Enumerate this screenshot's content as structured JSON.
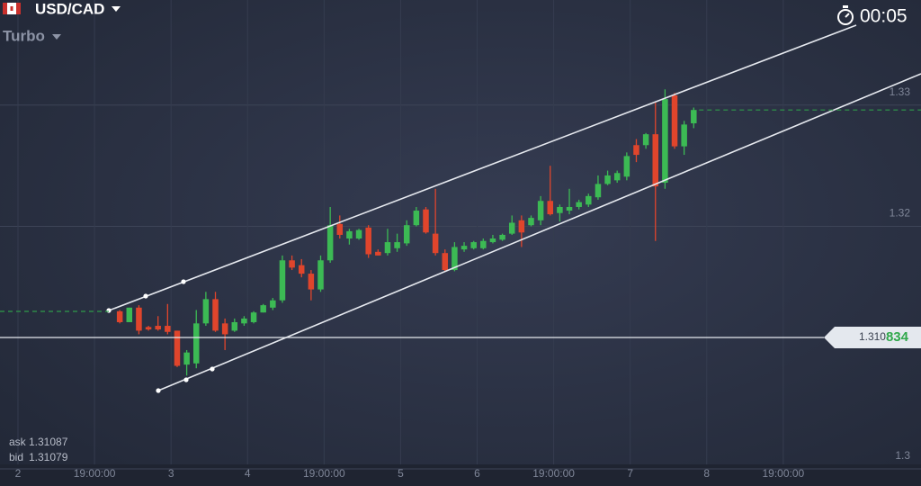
{
  "header": {
    "asset": "USD/CAD",
    "mode": "Turbo",
    "timer": "00:05"
  },
  "quotes": {
    "ask_label": "ask",
    "ask": "1.31087",
    "bid_label": "bid",
    "bid": "1.31079"
  },
  "chart_data": {
    "type": "candlestick",
    "up_color": "#3cba54",
    "down_color": "#e0452c",
    "xlim": [
      -0.235,
      11.8
    ],
    "xticks": [
      {
        "value": 0,
        "label": "2"
      },
      {
        "value": 1,
        "label": "19:00:00"
      },
      {
        "value": 2,
        "label": "3"
      },
      {
        "value": 3,
        "label": "4"
      },
      {
        "value": 4,
        "label": "19:00:00"
      },
      {
        "value": 5,
        "label": "5"
      },
      {
        "value": 6,
        "label": "6"
      },
      {
        "value": 7,
        "label": "19:00:00"
      },
      {
        "value": 8,
        "label": "7"
      },
      {
        "value": 9,
        "label": "8"
      },
      {
        "value": 10,
        "label": "19:00:00"
      }
    ],
    "ylim": [
      1.29859,
      1.33867
    ],
    "yticks": [
      1.3,
      1.32,
      1.33
    ],
    "grid": true,
    "current_price": 1.310834,
    "price_tag": [
      "1.310",
      "834"
    ],
    "x": [
      1.33,
      1.455,
      1.58,
      1.705,
      1.83,
      1.955,
      2.08,
      2.205,
      2.33,
      2.455,
      2.58,
      2.705,
      2.83,
      2.955,
      3.08,
      3.205,
      3.33,
      3.455,
      3.58,
      3.705,
      3.83,
      3.955,
      4.08,
      4.205,
      4.33,
      4.455,
      4.58,
      4.705,
      4.83,
      4.955,
      5.08,
      5.205,
      5.33,
      5.455,
      5.58,
      5.705,
      5.83,
      5.955,
      6.08,
      6.205,
      6.33,
      6.455,
      6.58,
      6.705,
      6.83,
      6.955,
      7.08,
      7.205,
      7.33,
      7.455,
      7.58,
      7.705,
      7.83,
      7.955,
      8.08,
      8.205,
      8.33,
      8.455,
      8.58,
      8.705,
      8.83
    ],
    "open": [
      1.313,
      1.3121,
      1.3133,
      1.3117,
      1.3118,
      1.3118,
      1.3114,
      1.3086,
      1.3087,
      1.312,
      1.314,
      1.312,
      1.3114,
      1.312,
      1.3121,
      1.3129,
      1.3133,
      1.3139,
      1.3172,
      1.3168,
      1.3161,
      1.3148,
      1.3172,
      1.3202,
      1.319,
      1.319,
      1.3199,
      1.3179,
      1.3178,
      1.3182,
      1.3186,
      1.3201,
      1.3214,
      1.3194,
      1.3178,
      1.3164,
      1.3181,
      1.3182,
      1.3182,
      1.3187,
      1.3189,
      1.3194,
      1.3205,
      1.3201,
      1.3205,
      1.3221,
      1.3211,
      1.3213,
      1.3216,
      1.3218,
      1.3224,
      1.3235,
      1.3238,
      1.3241,
      1.3267,
      1.3267,
      1.3276,
      1.3236,
      1.3308,
      1.3266,
      1.3285
    ],
    "high": [
      1.3131,
      1.3133,
      1.3135,
      1.3118,
      1.3126,
      1.3136,
      1.3114,
      1.3098,
      1.3131,
      1.3146,
      1.3146,
      1.3124,
      1.3124,
      1.3126,
      1.313,
      1.3136,
      1.3141,
      1.3176,
      1.3176,
      1.3173,
      1.3164,
      1.3176,
      1.3216,
      1.3209,
      1.3198,
      1.3198,
      1.3201,
      1.3181,
      1.3198,
      1.3194,
      1.3205,
      1.3216,
      1.3216,
      1.3231,
      1.3181,
      1.3187,
      1.3187,
      1.3188,
      1.319,
      1.3193,
      1.3194,
      1.3209,
      1.3209,
      1.3209,
      1.3225,
      1.325,
      1.3218,
      1.3231,
      1.3222,
      1.3227,
      1.3242,
      1.3246,
      1.3246,
      1.3261,
      1.3272,
      1.3277,
      1.3302,
      1.3313,
      1.331,
      1.3287,
      1.3298
    ],
    "low": [
      1.312,
      1.3121,
      1.3111,
      1.3114,
      1.3114,
      1.3111,
      1.3084,
      1.3077,
      1.3083,
      1.3118,
      1.3113,
      1.3098,
      1.3113,
      1.3118,
      1.312,
      1.3129,
      1.3131,
      1.3137,
      1.3164,
      1.3158,
      1.3139,
      1.3146,
      1.317,
      1.319,
      1.3185,
      1.3189,
      1.3174,
      1.3176,
      1.3176,
      1.3179,
      1.3184,
      1.32,
      1.3194,
      1.3176,
      1.3163,
      1.3163,
      1.3179,
      1.3181,
      1.3181,
      1.3186,
      1.3188,
      1.3193,
      1.3183,
      1.32,
      1.3201,
      1.3209,
      1.3204,
      1.321,
      1.3214,
      1.3216,
      1.3222,
      1.3234,
      1.3236,
      1.3238,
      1.3253,
      1.3264,
      1.3188,
      1.3231,
      1.3264,
      1.3259,
      1.3281
    ],
    "close": [
      1.3121,
      1.3133,
      1.3114,
      1.3115,
      1.3115,
      1.3113,
      1.3085,
      1.3096,
      1.312,
      1.314,
      1.3114,
      1.3111,
      1.3121,
      1.3124,
      1.3129,
      1.3135,
      1.3139,
      1.3172,
      1.3166,
      1.3161,
      1.3148,
      1.3172,
      1.3201,
      1.3193,
      1.3196,
      1.3197,
      1.3177,
      1.3176,
      1.3187,
      1.3187,
      1.3201,
      1.3213,
      1.3195,
      1.3178,
      1.3164,
      1.3183,
      1.3184,
      1.3187,
      1.3188,
      1.319,
      1.3193,
      1.3203,
      1.3195,
      1.3207,
      1.3221,
      1.321,
      1.3216,
      1.3216,
      1.322,
      1.3225,
      1.3235,
      1.3242,
      1.3244,
      1.3258,
      1.3259,
      1.3276,
      1.3233,
      1.3305,
      1.3266,
      1.3284,
      1.3296
    ]
  }
}
